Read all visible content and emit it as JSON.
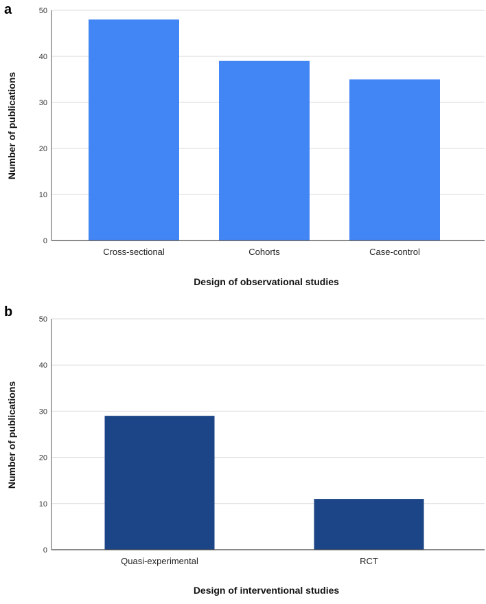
{
  "chart_data": [
    {
      "type": "bar",
      "panel_label": "a",
      "categories": [
        "Cross-sectional",
        "Cohorts",
        "Case-control"
      ],
      "values": [
        48,
        39,
        35
      ],
      "xlabel": "Design of observational studies",
      "ylabel": "Number of publications",
      "ylim": [
        0,
        50
      ],
      "yticks": [
        0,
        10,
        20,
        30,
        40,
        50
      ],
      "grid": true,
      "color": "#4285f4"
    },
    {
      "type": "bar",
      "panel_label": "b",
      "categories": [
        "Quasi-experimental",
        "RCT"
      ],
      "values": [
        29,
        11
      ],
      "xlabel": "Design of interventional studies",
      "ylabel": "Number of publications",
      "ylim": [
        0,
        50
      ],
      "yticks": [
        0,
        10,
        20,
        30,
        40,
        50
      ],
      "grid": true,
      "color": "#1c4587"
    }
  ]
}
